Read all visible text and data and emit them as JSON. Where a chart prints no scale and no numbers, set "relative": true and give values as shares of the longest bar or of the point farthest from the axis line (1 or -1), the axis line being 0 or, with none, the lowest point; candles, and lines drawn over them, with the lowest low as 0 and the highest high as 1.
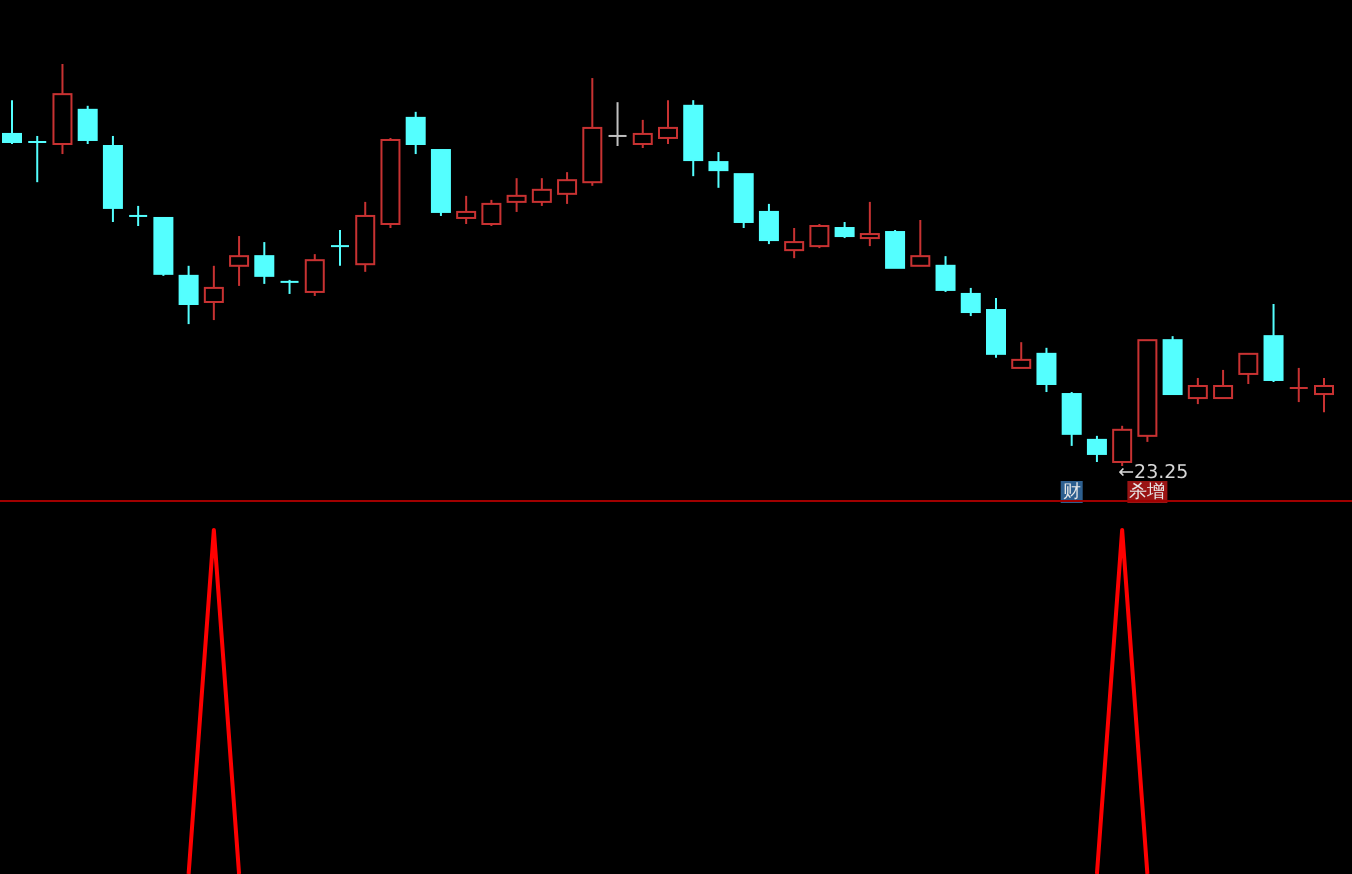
{
  "chart_data": [
    {
      "type": "candlestick",
      "relative": true,
      "categories": [
        null,
        null,
        null,
        null,
        null,
        null,
        null,
        null,
        null,
        null,
        null,
        null,
        null,
        null,
        null,
        null,
        null,
        null,
        null,
        null,
        null,
        null,
        null,
        null,
        null,
        null,
        null,
        null,
        null,
        null,
        null,
        null,
        null,
        null,
        null,
        null,
        null,
        null,
        null,
        null,
        null,
        null,
        null,
        null,
        null,
        null,
        null,
        null,
        null,
        null,
        null,
        null,
        null
      ],
      "ohlc": [
        [
          0.826,
          0.91,
          0.801,
          0.806
        ],
        [
          0.806,
          0.821,
          0.706,
          0.806
        ],
        [
          0.801,
          1.0,
          0.776,
          0.925
        ],
        [
          0.886,
          0.896,
          0.801,
          0.811
        ],
        [
          0.796,
          0.821,
          0.607,
          0.642
        ],
        [
          0.622,
          0.647,
          0.597,
          0.622
        ],
        [
          0.617,
          0.617,
          0.473,
          0.478
        ],
        [
          0.473,
          0.498,
          0.353,
          0.403
        ],
        [
          0.408,
          0.498,
          0.363,
          0.443
        ],
        [
          0.498,
          0.572,
          0.448,
          0.522
        ],
        [
          0.522,
          0.557,
          0.453,
          0.473
        ],
        [
          0.458,
          0.463,
          0.428,
          0.458
        ],
        [
          0.433,
          0.527,
          0.423,
          0.512
        ],
        [
          0.547,
          0.587,
          0.498,
          0.547
        ],
        [
          0.502,
          0.657,
          0.483,
          0.622
        ],
        [
          0.602,
          0.816,
          0.592,
          0.811
        ],
        [
          0.866,
          0.881,
          0.776,
          0.801
        ],
        [
          0.786,
          0.786,
          0.622,
          0.632
        ],
        [
          0.617,
          0.672,
          0.602,
          0.632
        ],
        [
          0.602,
          0.662,
          0.597,
          0.652
        ],
        [
          0.657,
          0.716,
          0.632,
          0.672
        ],
        [
          0.657,
          0.716,
          0.647,
          0.687
        ],
        [
          0.677,
          0.731,
          0.652,
          0.711
        ],
        [
          0.706,
          0.965,
          0.697,
          0.841
        ],
        [
          0.821,
          0.905,
          0.796,
          0.821
        ],
        [
          0.801,
          0.861,
          0.791,
          0.826
        ],
        [
          0.816,
          0.91,
          0.801,
          0.841
        ],
        [
          0.896,
          0.91,
          0.721,
          0.761
        ],
        [
          0.756,
          0.781,
          0.692,
          0.736
        ],
        [
          0.726,
          0.726,
          0.592,
          0.607
        ],
        [
          0.632,
          0.652,
          0.552,
          0.562
        ],
        [
          0.537,
          0.592,
          0.517,
          0.557
        ],
        [
          0.547,
          0.602,
          0.542,
          0.597
        ],
        [
          0.592,
          0.607,
          0.567,
          0.572
        ],
        [
          0.567,
          0.657,
          0.547,
          0.577
        ],
        [
          0.582,
          0.587,
          0.493,
          0.493
        ],
        [
          0.498,
          0.612,
          0.498,
          0.522
        ],
        [
          0.498,
          0.522,
          0.433,
          0.438
        ],
        [
          0.428,
          0.443,
          0.373,
          0.383
        ],
        [
          0.388,
          0.418,
          0.269,
          0.279
        ],
        [
          0.244,
          0.308,
          0.244,
          0.264
        ],
        [
          0.279,
          0.294,
          0.184,
          0.204
        ],
        [
          0.179,
          0.184,
          0.05,
          0.08
        ],
        [
          0.065,
          0.075,
          0.01,
          0.03
        ],
        [
          0.01,
          0.1,
          0.0,
          0.09
        ],
        [
          0.075,
          0.313,
          0.06,
          0.313
        ],
        [
          0.313,
          0.323,
          0.179,
          0.179
        ],
        [
          0.169,
          0.219,
          0.154,
          0.199
        ],
        [
          0.169,
          0.239,
          0.169,
          0.199
        ],
        [
          0.229,
          0.279,
          0.204,
          0.279
        ],
        [
          0.323,
          0.403,
          0.209,
          0.214
        ],
        [
          0.194,
          0.244,
          0.159,
          0.194
        ],
        [
          0.179,
          0.219,
          0.134,
          0.199
        ]
      ],
      "colors": [
        "#54ffff",
        "#54ffff",
        "#c83232",
        "#54ffff",
        "#54ffff",
        "#54ffff",
        "#54ffff",
        "#54ffff",
        "#c83232",
        "#c83232",
        "#54ffff",
        "#54ffff",
        "#c83232",
        "#54ffff",
        "#c83232",
        "#c83232",
        "#54ffff",
        "#54ffff",
        "#c83232",
        "#c83232",
        "#c83232",
        "#c83232",
        "#c83232",
        "#c83232",
        "#c0c0c0",
        "#c83232",
        "#c83232",
        "#54ffff",
        "#54ffff",
        "#54ffff",
        "#54ffff",
        "#c83232",
        "#c83232",
        "#54ffff",
        "#c83232",
        "#54ffff",
        "#c83232",
        "#54ffff",
        "#54ffff",
        "#54ffff",
        "#c83232",
        "#54ffff",
        "#54ffff",
        "#54ffff",
        "#c83232",
        "#c83232",
        "#54ffff",
        "#c83232",
        "#c83232",
        "#c83232",
        "#54ffff",
        "#c83232",
        "#c83232"
      ],
      "annotations": [
        "←23.25",
        "财",
        "杀增"
      ]
    },
    {
      "type": "line",
      "relative": true,
      "categories": [
        null,
        null,
        null,
        null,
        null,
        null,
        null,
        null,
        null,
        null,
        null,
        null,
        null,
        null,
        null,
        null,
        null,
        null,
        null,
        null,
        null,
        null,
        null,
        null,
        null,
        null,
        null,
        null,
        null,
        null,
        null,
        null,
        null,
        null,
        null,
        null,
        null,
        null,
        null,
        null,
        null,
        null,
        null,
        null,
        null,
        null,
        null,
        null,
        null,
        null,
        null,
        null,
        null
      ],
      "series": [
        {
          "color": "#ff0000",
          "values": [
            null,
            null,
            null,
            null,
            null,
            null,
            null,
            0,
            1,
            0,
            null,
            null,
            null,
            null,
            null,
            null,
            null,
            null,
            null,
            null,
            null,
            null,
            null,
            null,
            null,
            null,
            null,
            null,
            null,
            null,
            null,
            null,
            null,
            null,
            null,
            null,
            null,
            null,
            null,
            null,
            null,
            null,
            null,
            0,
            1,
            0,
            null,
            null,
            null,
            null,
            null,
            null,
            null
          ]
        }
      ]
    }
  ]
}
